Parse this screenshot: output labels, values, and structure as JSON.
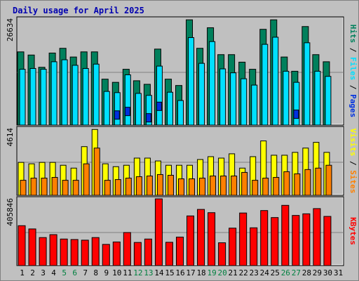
{
  "title": "Daily usage for April 2025",
  "colors": {
    "hits": "#00805c",
    "files": "#00e0ff",
    "pages": "#0030e0",
    "visits": "#ffff00",
    "sites": "#ff8000",
    "kbytes": "#ff0000",
    "weekend_label": "#008040",
    "panel_bg": "#c0c0c0"
  },
  "chart_data": [
    {
      "type": "bar",
      "panel": "hits-files-pages",
      "ylabel_parts": [
        "Pages",
        "Files",
        "Hits"
      ],
      "ymax_label": "26634",
      "ylim": [
        0,
        26634
      ],
      "categories": [
        "1",
        "2",
        "3",
        "4",
        "5",
        "6",
        "7",
        "8",
        "9",
        "10",
        "11",
        "12",
        "13",
        "14",
        "15",
        "16",
        "17",
        "18",
        "19",
        "20",
        "21",
        "22",
        "23",
        "24",
        "25",
        "26",
        "27",
        "28",
        "29",
        "30",
        "31"
      ],
      "series": [
        {
          "name": "Hits",
          "values": [
            18500,
            17700,
            14600,
            18200,
            19400,
            17200,
            18500,
            18500,
            11600,
            10800,
            14100,
            11200,
            10300,
            19200,
            11600,
            10000,
            26600,
            19400,
            24600,
            17800,
            17800,
            15900,
            14100,
            24200,
            26600,
            17200,
            13600,
            24900,
            17800,
            16000,
            0
          ]
        },
        {
          "name": "Files",
          "values": [
            14100,
            14300,
            14100,
            16000,
            16500,
            15100,
            14300,
            15400,
            8500,
            8200,
            12700,
            8000,
            7500,
            14900,
            8300,
            6200,
            22100,
            15600,
            21100,
            14200,
            13200,
            11700,
            10100,
            20400,
            22200,
            13600,
            10800,
            20800,
            13600,
            12300,
            0
          ]
        },
        {
          "name": "Pages",
          "values": [
            0,
            0,
            0,
            0,
            0,
            0,
            0,
            0,
            0,
            3600,
            4500,
            0,
            2900,
            5800,
            0,
            0,
            0,
            0,
            0,
            0,
            0,
            0,
            0,
            0,
            0,
            0,
            3800,
            0,
            0,
            0,
            0
          ]
        }
      ]
    },
    {
      "type": "bar",
      "panel": "visits-sites",
      "ylabel_parts": [
        "Sites",
        "Visits"
      ],
      "ymax_label": "4614",
      "ylim": [
        0,
        4614
      ],
      "categories": [
        "1",
        "2",
        "3",
        "4",
        "5",
        "6",
        "7",
        "8",
        "9",
        "10",
        "11",
        "12",
        "13",
        "14",
        "15",
        "16",
        "17",
        "18",
        "19",
        "20",
        "21",
        "22",
        "23",
        "24",
        "25",
        "26",
        "27",
        "28",
        "29",
        "30",
        "31"
      ],
      "series": [
        {
          "name": "Visits",
          "values": [
            2300,
            2200,
            2300,
            2300,
            2100,
            1900,
            3400,
            4600,
            2200,
            2000,
            2100,
            2600,
            2600,
            2400,
            2100,
            2100,
            2100,
            2500,
            2700,
            2600,
            2900,
            1900,
            2700,
            3800,
            2800,
            2800,
            3000,
            3300,
            3700,
            3000,
            0
          ]
        },
        {
          "name": "Sites",
          "values": [
            1050,
            1200,
            1200,
            1250,
            1050,
            1050,
            2200,
            3300,
            1050,
            1100,
            1200,
            1300,
            1350,
            1450,
            1400,
            1150,
            1150,
            1200,
            1350,
            1350,
            1350,
            1600,
            1050,
            1200,
            1250,
            1650,
            1500,
            1800,
            1900,
            2100,
            0
          ]
        }
      ]
    },
    {
      "type": "bar",
      "panel": "kbytes",
      "ylabel_parts": [
        "KBytes"
      ],
      "ymax_label": "405846",
      "ylim": [
        0,
        405846
      ],
      "categories": [
        "1",
        "2",
        "3",
        "4",
        "5",
        "6",
        "7",
        "8",
        "9",
        "10",
        "11",
        "12",
        "13",
        "14",
        "15",
        "16",
        "17",
        "18",
        "19",
        "20",
        "21",
        "22",
        "23",
        "24",
        "25",
        "26",
        "27",
        "28",
        "29",
        "30",
        "31"
      ],
      "series": [
        {
          "name": "KBytes",
          "values": [
            245000,
            225000,
            172000,
            190000,
            163000,
            160000,
            156000,
            172000,
            130000,
            145000,
            203000,
            142000,
            163000,
            410000,
            143000,
            175000,
            305000,
            345000,
            325000,
            140000,
            230000,
            323000,
            232000,
            338000,
            295000,
            370000,
            308000,
            318000,
            350000,
            302000,
            0
          ]
        }
      ]
    }
  ],
  "weekend_days": [
    "5",
    "6",
    "12",
    "13",
    "19",
    "20",
    "26",
    "27"
  ]
}
